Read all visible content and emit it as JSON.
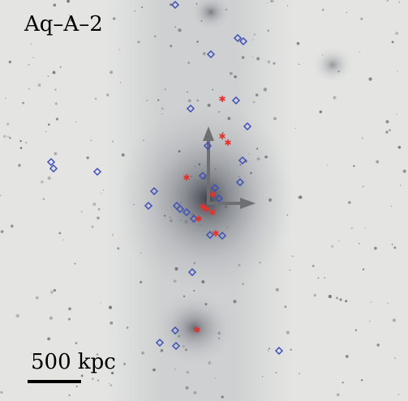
{
  "panel": {
    "title": "Aq–A–2",
    "scale_bar_label": "500 kpc"
  }
}
